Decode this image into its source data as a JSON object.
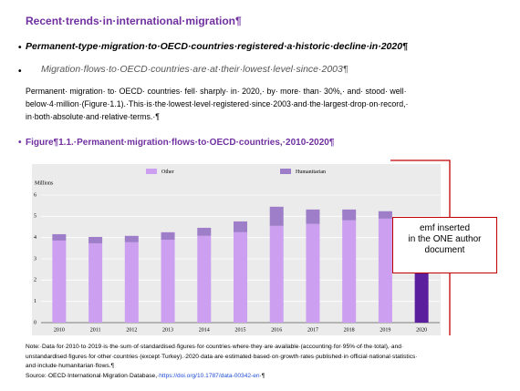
{
  "heading": "Recent·trends·in·international·migration¶",
  "bullets": [
    "Permanent-type·migration·to·OECD·countries·registered·a·historic·decline·in·2020¶",
    "Migration·flows·to·OECD·countries·are·at·their·lowest·level·since·2003¶"
  ],
  "paragraph": [
    "Permanent· migration· to· OECD· countries· fell· sharply· in· 2020,· by· more· than· 30%,· and· stood· well·",
    "below·4·million·(Figure·1.1).·This·is·the·lowest·level·registered·since·2003·and·the·largest·drop·on·record,·",
    "in·both·absolute·and·relative·terms.·¶"
  ],
  "figure_title": "Figure¶1.1.·Permanent·migration·flows·to·OECD·countries,·2010-2020¶",
  "chart_data": {
    "type": "stacked-bar",
    "y_label": "Millions",
    "categories": [
      "2010",
      "2011",
      "2012",
      "2013",
      "2014",
      "2015",
      "2016",
      "2017",
      "2018",
      "2019",
      "2020"
    ],
    "series": [
      {
        "name": "Other",
        "color": "#cc9ff0",
        "values": [
          3.86,
          3.73,
          3.78,
          3.9,
          4.08,
          4.25,
          4.55,
          4.64,
          4.81,
          4.89,
          3.5
        ]
      },
      {
        "name": "Humanitarian",
        "color": "#9e7ec9",
        "values": [
          0.3,
          0.3,
          0.3,
          0.35,
          0.38,
          0.51,
          0.9,
          0.68,
          0.51,
          0.35,
          0.2
        ]
      }
    ],
    "highlight_color": "#5b1f9e",
    "highlight_category": "2020",
    "ylim": [
      0,
      6
    ],
    "yticks": [
      0,
      1,
      2,
      3,
      4,
      5,
      6
    ],
    "grid": true,
    "legend": "top"
  },
  "note": [
    "Note:·Data·for·2010·to·2019·is·the·sum·of·standardised·figures·for·countries·where·they·are·available·(accounting·for·95%·of·the·total),·and·",
    "unstandardised·figures·for·other·countries·(except·Turkey).·2020·data·are·estimated·based·on·growth·rates·published·in·official·national·statistics·",
    "and·include·humanitarian·flows.¶"
  ],
  "source": [
    "Source:·OECD·International·Migration·Database,·",
    "https://doi.org/10.1787/data-00342-en",
    "·¶"
  ],
  "comment": [
    "emf inserted",
    "in the ONE author",
    "document"
  ]
}
